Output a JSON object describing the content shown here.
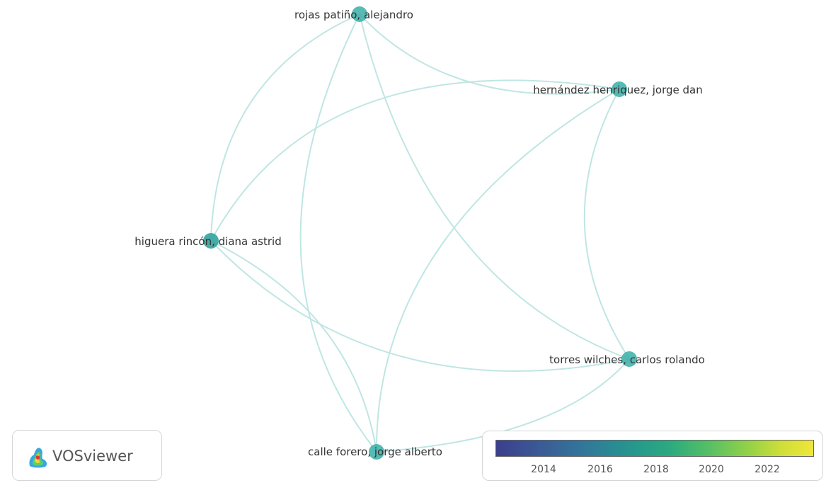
{
  "app": {
    "logo_text": "VOSviewer"
  },
  "network": {
    "nodes": [
      {
        "id": "rojas",
        "label": "rojas patiño, alejandro",
        "color": "#3aaea7"
      },
      {
        "id": "hernandez",
        "label": "hernández henriquez, jorge dan",
        "color": "#3aaea7"
      },
      {
        "id": "higuera",
        "label": "higuera rincón, diana astrid",
        "color": "#32a39f"
      },
      {
        "id": "torres",
        "label": "torres wilches, carlos rolando",
        "color": "#3aaea7"
      },
      {
        "id": "calle",
        "label": "calle forero, jorge alberto",
        "color": "#3aaea7"
      }
    ],
    "edges": [
      [
        "rojas",
        "hernandez"
      ],
      [
        "rojas",
        "higuera"
      ],
      [
        "rojas",
        "torres"
      ],
      [
        "rojas",
        "calle"
      ],
      [
        "hernandez",
        "higuera"
      ],
      [
        "hernandez",
        "torres"
      ],
      [
        "hernandez",
        "calle"
      ],
      [
        "higuera",
        "torres"
      ],
      [
        "higuera",
        "calle"
      ],
      [
        "torres",
        "calle"
      ]
    ],
    "edge_color": "#bfe6e3"
  },
  "legend": {
    "ticks": [
      "2014",
      "2016",
      "2018",
      "2020",
      "2022"
    ],
    "colors": [
      "#3b3f8c",
      "#32789a",
      "#2bab7f",
      "#96d246",
      "#f0e63a"
    ]
  }
}
